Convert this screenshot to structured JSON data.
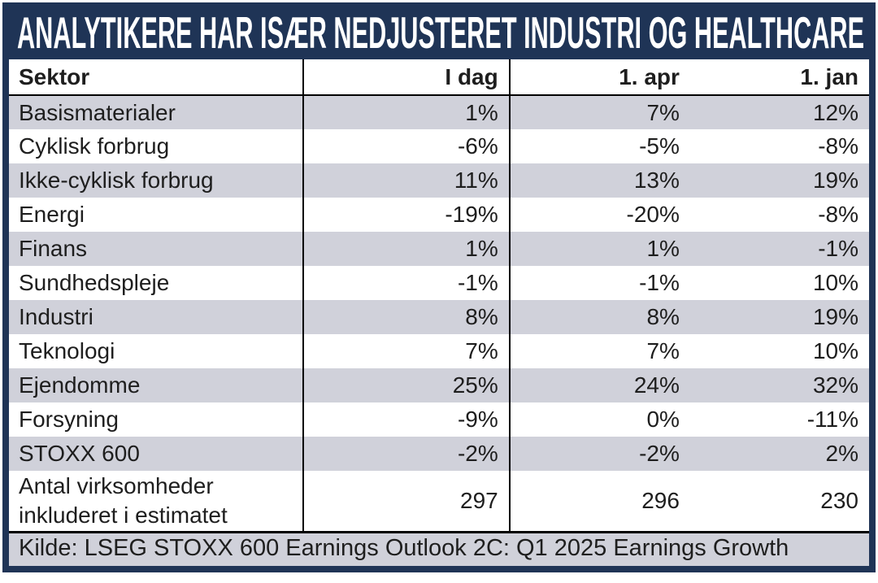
{
  "title": "ANALYTIKERE HAR ISÆR NEDJUSTERET INDUSTRI OG HEALTHCARE",
  "chart_data": {
    "type": "table",
    "columns": [
      "Sektor",
      "I dag",
      "1. apr",
      "1. jan"
    ],
    "rows": [
      {
        "label": "Basismaterialer",
        "values": [
          "1%",
          "7%",
          "12%"
        ]
      },
      {
        "label": "Cyklisk forbrug",
        "values": [
          "-6%",
          "-5%",
          "-8%"
        ]
      },
      {
        "label": "Ikke-cyklisk forbrug",
        "values": [
          "11%",
          "13%",
          "19%"
        ]
      },
      {
        "label": "Energi",
        "values": [
          "-19%",
          "-20%",
          "-8%"
        ]
      },
      {
        "label": "Finans",
        "values": [
          "1%",
          "1%",
          "-1%"
        ]
      },
      {
        "label": "Sundhedspleje",
        "values": [
          "-1%",
          "-1%",
          "10%"
        ]
      },
      {
        "label": "Industri",
        "values": [
          "8%",
          "8%",
          "19%"
        ]
      },
      {
        "label": "Teknologi",
        "values": [
          "7%",
          "7%",
          "10%"
        ]
      },
      {
        "label": "Ejendomme",
        "values": [
          "25%",
          "24%",
          "32%"
        ]
      },
      {
        "label": "Forsyning",
        "values": [
          "-9%",
          "0%",
          "-11%"
        ]
      },
      {
        "label": "STOXX 600",
        "values": [
          "-2%",
          "-2%",
          "2%"
        ]
      },
      {
        "label": "Antal virksomheder inkluderet i estimatet",
        "values": [
          "297",
          "296",
          "230"
        ]
      }
    ],
    "source": "Kilde: LSEG STOXX 600 Earnings Outlook 2C: Q1 2025 Earnings Growth",
    "title": "ANALYTIKERE HAR ISÆR NEDJUSTERET INDUSTRI OG HEALTHCARE",
    "legend_position": "none",
    "grid": "row-banding"
  },
  "colors": {
    "navy": "#1f3456",
    "row_alt": "#d0d1da",
    "text": "#1e1e1e",
    "title_text": "#ffffff",
    "border": "#000000"
  }
}
